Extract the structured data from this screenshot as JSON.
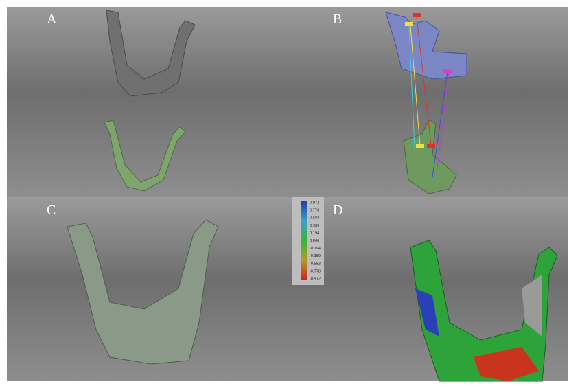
{
  "panels": {
    "a": {
      "label": "A"
    },
    "b": {
      "label": "B"
    },
    "c": {
      "label": "C"
    },
    "d": {
      "label": "D"
    }
  },
  "color_scale": {
    "labels": [
      "0.972",
      "0.778",
      "0.583",
      "0.389",
      "0.194",
      "0.000",
      "-0.194",
      "-0.389",
      "-0.583",
      "-0.778",
      "-0.972"
    ]
  }
}
